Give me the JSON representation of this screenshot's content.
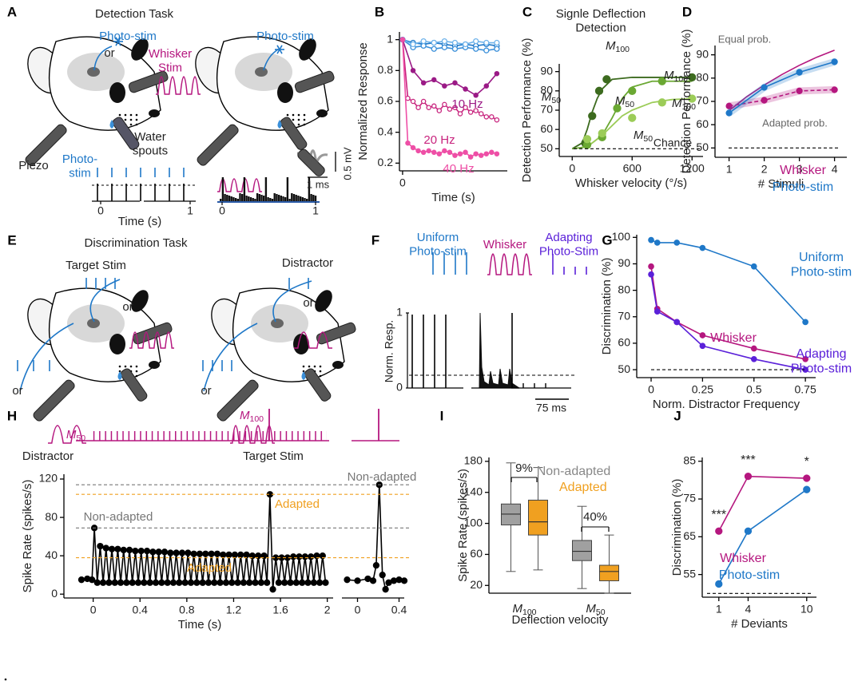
{
  "panel_labels": [
    "A",
    "B",
    "C",
    "D",
    "E",
    "F",
    "G",
    "H",
    "I",
    "J"
  ],
  "panel_a": {
    "title": "Detection Task",
    "photo_stim": "Photo-stim",
    "or": "or",
    "whisker_stim": "Whisker\nStim",
    "photo_stim_2": "Photo-stim",
    "water_spouts": "Water\nspouts",
    "piezo": "Piezo",
    "photo_stim_3": "Photo-\nstim",
    "xlabel": "Time (s)",
    "xticks": [
      "0",
      "1",
      "0",
      "1"
    ],
    "scale_v": "0.5 mV",
    "scale_t": "1 ms"
  },
  "panel_e": {
    "title": "Discrimination Task",
    "target_stim": "Target Stim",
    "or_1": "or",
    "or_2": "or",
    "distractor": "Distractor",
    "distractor_2": "Distractor",
    "or_3": "or",
    "or_4": "or",
    "target_stim_2": "Target Stim"
  },
  "panel_f": {
    "uniform": "Uniform\nPhoto-stim",
    "whisker": "Whisker",
    "adapting": "Adapting\nPhoto-Stim",
    "ylabel": "Norm. Resp.",
    "yticks": [
      "1",
      "0"
    ],
    "scale_t": "75 ms"
  },
  "chart_data": [
    {
      "type": "line",
      "ylabel": "Normalized Response",
      "xlabel": "Time (s)",
      "xlim": [
        -0.03,
        1
      ],
      "xticks": [
        0
      ],
      "ylim": [
        0.15,
        1.05
      ],
      "yticks": [
        0.2,
        0.4,
        0.6,
        0.8,
        1
      ],
      "series": [
        {
          "color": "#1f78c8",
          "x": [
            0,
            0.1,
            0.2,
            0.3,
            0.4,
            0.5,
            0.6,
            0.7,
            0.8,
            0.9
          ],
          "values": [
            1,
            0.98,
            0.97,
            0.98,
            0.97,
            0.96,
            0.97,
            0.96,
            0.97,
            0.96
          ]
        },
        {
          "color": "#3a8fd9",
          "x": [
            0,
            0.1,
            0.2,
            0.3,
            0.4,
            0.5,
            0.6,
            0.7,
            0.8,
            0.9
          ],
          "values": [
            1,
            0.95,
            0.96,
            0.94,
            0.95,
            0.94,
            0.95,
            0.94,
            0.93,
            0.94
          ]
        },
        {
          "color": "#6fb3ea",
          "x": [
            0,
            0.1,
            0.2,
            0.3,
            0.4,
            0.5,
            0.6,
            0.7,
            0.8,
            0.9
          ],
          "values": [
            1,
            0.97,
            0.99,
            0.98,
            0.99,
            0.98,
            0.97,
            0.99,
            0.98,
            0.98
          ]
        },
        {
          "name": "10 Hz",
          "color": "#9b1a86",
          "x": [
            0,
            0.1,
            0.2,
            0.3,
            0.4,
            0.5,
            0.6,
            0.7,
            0.8,
            0.9
          ],
          "values": [
            1,
            0.8,
            0.72,
            0.74,
            0.7,
            0.72,
            0.68,
            0.64,
            0.7,
            0.78
          ]
        },
        {
          "name": "20 Hz",
          "color": "#c8247e",
          "x": [
            0,
            0.05,
            0.1,
            0.15,
            0.2,
            0.25,
            0.3,
            0.35,
            0.4,
            0.45,
            0.5,
            0.55,
            0.6,
            0.65,
            0.7,
            0.75,
            0.8,
            0.85,
            0.9
          ],
          "values": [
            1,
            0.62,
            0.6,
            0.56,
            0.6,
            0.56,
            0.57,
            0.54,
            0.58,
            0.55,
            0.56,
            0.52,
            0.56,
            0.53,
            0.54,
            0.52,
            0.5,
            0.5,
            0.48
          ]
        },
        {
          "name": "40 Hz",
          "color": "#ee4fa6",
          "x": [
            0,
            0.05,
            0.1,
            0.15,
            0.2,
            0.25,
            0.3,
            0.35,
            0.4,
            0.45,
            0.5,
            0.55,
            0.6,
            0.65,
            0.7,
            0.75,
            0.8,
            0.85,
            0.9
          ],
          "values": [
            1,
            0.33,
            0.3,
            0.28,
            0.27,
            0.28,
            0.27,
            0.26,
            0.28,
            0.27,
            0.25,
            0.26,
            0.27,
            0.24,
            0.26,
            0.25,
            0.26,
            0.27,
            0.26
          ]
        }
      ]
    },
    {
      "type": "scatter",
      "title": "Signle Deflection\nDetection",
      "ylabel": "Detection Performance (%)",
      "xlabel": "Whisker velocity (°/s)",
      "xlim": [
        -130,
        1310
      ],
      "xticks": [
        0,
        600,
        1200
      ],
      "ylim": [
        46,
        94
      ],
      "yticks": [
        50,
        60,
        70,
        80,
        90
      ],
      "series": [
        {
          "color": "#3d6b1f",
          "x": [
            130,
            200,
            270,
            345,
            1200
          ],
          "values": [
            53,
            67,
            80,
            86,
            87
          ]
        },
        {
          "color": "#6aa832",
          "x": [
            150,
            300,
            450,
            600,
            900
          ],
          "values": [
            52,
            56,
            71,
            80,
            85
          ]
        },
        {
          "color": "#9ccc58",
          "x": [
            150,
            300,
            600,
            900,
            1200
          ],
          "values": [
            55,
            58,
            66,
            74,
            76
          ]
        }
      ],
      "fits": [
        {
          "color": "#3d6b1f",
          "x": [
            0,
            100,
            150,
            200,
            250,
            300,
            400,
            600,
            1200
          ],
          "values": [
            50,
            53,
            60,
            69,
            76,
            81,
            86,
            87,
            87
          ]
        },
        {
          "color": "#6aa832",
          "x": [
            0,
            150,
            300,
            400,
            500,
            600,
            800,
            1200
          ],
          "values": [
            50,
            51,
            57,
            66,
            76,
            82,
            85,
            85
          ]
        },
        {
          "color": "#9ccc58",
          "x": [
            100,
            200,
            300,
            400,
            500,
            600,
            800,
            1000,
            1200
          ],
          "values": [
            51,
            53,
            57,
            62,
            67,
            70,
            74,
            75.5,
            76
          ]
        }
      ],
      "annotations": [
        {
          "main": "M",
          "sub": "100"
        },
        {
          "main": "M",
          "sub": "50"
        },
        {
          "main": "M",
          "sub": "100"
        },
        {
          "main": "M",
          "sub": "50"
        },
        {
          "main": "M",
          "sub": "50"
        },
        {
          "main": "M",
          "sub": "100"
        }
      ],
      "chance": {
        "label": "Chance",
        "value": 50
      }
    },
    {
      "type": "line",
      "ylabel": "Detection Performance (%)",
      "xlabel": "# Stimuli",
      "xlim": [
        0.6,
        4.35
      ],
      "xticks": [
        1,
        2,
        3,
        4
      ],
      "ylim": [
        46,
        94
      ],
      "yticks": [
        50,
        60,
        70,
        80,
        90
      ],
      "x": [
        1,
        2,
        3,
        4
      ],
      "series": [
        {
          "name": "Whisker",
          "color": "#b5177f",
          "values": [
            68,
            70.5,
            74.5,
            75
          ]
        },
        {
          "name": "Photo-stim",
          "color": "#1f78c8",
          "values": [
            65,
            76,
            82.5,
            87
          ]
        }
      ],
      "model_curve": {
        "name": "Equal prob.",
        "color": "#b5177f",
        "x": [
          1,
          1.5,
          2,
          2.5,
          3,
          3.5,
          4
        ],
        "values": [
          66,
          72,
          77,
          81.5,
          85.5,
          89,
          92
        ]
      },
      "adapted_label": "Adapted prob.",
      "reference_line": 50
    },
    {
      "type": "line",
      "ylabel": "Discrimination (%)",
      "xlabel": "Norm. Distractor Frequency",
      "xlim": [
        -0.07,
        0.8
      ],
      "xticks": [
        0,
        0.25,
        0.5,
        0.75
      ],
      "ylim": [
        47,
        101
      ],
      "yticks": [
        50,
        60,
        70,
        80,
        90,
        100
      ],
      "x": [
        0,
        0.03,
        0.125,
        0.25,
        0.5,
        0.75
      ],
      "series": [
        {
          "name": "Uniform\nPhoto-stim",
          "color": "#1f78c8",
          "values": [
            99,
            98,
            98,
            96,
            89,
            68
          ]
        },
        {
          "name": "Whisker",
          "color": "#b5177f",
          "values": [
            89,
            73,
            68,
            63,
            58,
            54
          ]
        },
        {
          "name": "Adapting\nPhoto-stim",
          "color": "#5b21d9",
          "values": [
            86,
            72,
            68,
            59,
            54,
            50
          ]
        }
      ],
      "reference_line": 50
    },
    {
      "type": "line",
      "ylabel": "Spike Rate (spikes/s)",
      "xlabel": "Time (s)",
      "xlim": [
        -0.25,
        2.05
      ],
      "xticks": [
        0,
        0.4,
        0.8,
        1.2,
        1.6,
        2
      ],
      "ylim": [
        -4,
        125
      ],
      "yticks": [
        0,
        40,
        80,
        120
      ],
      "stimulus_labels": [
        {
          "main": "M",
          "sub": "50"
        },
        {
          "main": "M",
          "sub": "100"
        }
      ],
      "series": [
        {
          "color": "#000000",
          "x": [
            -0.1,
            -0.05,
            -0.01,
            0.01,
            0.035,
            0.06,
            0.085,
            0.11,
            0.135,
            0.16,
            0.185,
            0.21,
            0.235,
            0.26,
            0.285,
            0.31,
            0.335,
            0.36,
            0.385,
            0.41,
            0.435,
            0.46,
            0.485,
            0.51,
            0.535,
            0.56,
            0.585,
            0.61,
            0.635,
            0.66,
            0.685,
            0.71,
            0.735,
            0.76,
            0.785,
            0.81,
            0.835,
            0.86,
            0.885,
            0.91,
            0.935,
            0.96,
            0.985,
            1.01,
            1.035,
            1.06,
            1.085,
            1.11,
            1.135,
            1.16,
            1.185,
            1.21,
            1.235,
            1.26,
            1.285,
            1.31,
            1.335,
            1.36,
            1.385,
            1.41,
            1.435,
            1.46,
            1.485,
            1.51,
            1.535,
            1.56,
            1.585,
            1.61,
            1.635,
            1.66,
            1.685,
            1.71,
            1.735,
            1.76,
            1.785,
            1.81,
            1.835,
            1.86,
            1.885,
            1.91,
            1.935,
            1.96,
            1.985
          ],
          "values": [
            15,
            16,
            15,
            69,
            12,
            50,
            12,
            48,
            12,
            47,
            12,
            47,
            12,
            46,
            12,
            46,
            12,
            45,
            12,
            45,
            12,
            45,
            12,
            44,
            12,
            44,
            12,
            44,
            12,
            43,
            12,
            43,
            12,
            43,
            12,
            43,
            12,
            42,
            12,
            42,
            12,
            42,
            12,
            42,
            12,
            42,
            12,
            41,
            12,
            41,
            12,
            41,
            12,
            41,
            12,
            41,
            12,
            40,
            12,
            40,
            12,
            40,
            12,
            104,
            5,
            38,
            12,
            38,
            12,
            38,
            12,
            39,
            12,
            39,
            12,
            39,
            12,
            39,
            12,
            40,
            12,
            40,
            12
          ]
        }
      ],
      "references": [
        {
          "label": "Non-adapted",
          "value": 114,
          "color": "#777777"
        },
        {
          "label": "Adapted",
          "value": 104,
          "color": "#f0a020"
        },
        {
          "label": "Non-adapted",
          "value": 69,
          "color": "#777777"
        },
        {
          "label": "Adapted",
          "value": 38,
          "color": "#f0a020"
        }
      ]
    },
    {
      "type": "line",
      "xlim": [
        -0.15,
        0.45
      ],
      "xticks": [
        0,
        0.4
      ],
      "ylim": [
        -4,
        125
      ],
      "series": [
        {
          "color": "#000000",
          "x": [
            -0.1,
            0,
            0.1,
            0.15,
            0.18,
            0.21,
            0.24,
            0.27,
            0.3,
            0.35,
            0.4,
            0.45
          ],
          "values": [
            15,
            14,
            16,
            14,
            30,
            114,
            20,
            5,
            12,
            14,
            15,
            14
          ]
        }
      ]
    },
    {
      "type": "box",
      "ylabel": "Spike Rate (spikes/s)",
      "xlabel": "Deflection velocity",
      "ylim": [
        10,
        185
      ],
      "yticks": [
        20,
        60,
        100,
        140,
        180
      ],
      "categories": [
        {
          "main": "M",
          "sub": "100"
        },
        {
          "main": "M",
          "sub": "50"
        }
      ],
      "series": [
        {
          "name": "Non-adapted",
          "color": "#a0a0a0",
          "min": [
            38,
            16
          ],
          "q1": [
            98,
            52
          ],
          "median": [
            112,
            64
          ],
          "q3": [
            125,
            78
          ],
          "max": [
            178,
            122
          ]
        },
        {
          "name": "Adapted",
          "color": "#f0a020",
          "min": [
            40,
            10
          ],
          "q1": [
            85,
            26
          ],
          "median": [
            102,
            38
          ],
          "q3": [
            130,
            46
          ],
          "max": [
            172,
            85
          ]
        }
      ],
      "annotations": [
        "9%",
        "40%"
      ]
    },
    {
      "type": "line",
      "ylabel": "Discrimination (%)",
      "xlabel": "# Deviants",
      "xlim": [
        -0.7,
        11
      ],
      "xticks": [
        1,
        4,
        10
      ],
      "ylim": [
        49,
        86
      ],
      "yticks": [
        55,
        65,
        75,
        85
      ],
      "x": [
        1,
        4,
        10
      ],
      "series": [
        {
          "name": "Whisker",
          "color": "#b5177f",
          "values": [
            66.5,
            81,
            80.5
          ]
        },
        {
          "name": "Photo-stim",
          "color": "#1f78c8",
          "values": [
            52.5,
            66.5,
            77.5
          ]
        }
      ],
      "significance": [
        "***",
        "***",
        "*"
      ],
      "reference_line": 50
    }
  ]
}
